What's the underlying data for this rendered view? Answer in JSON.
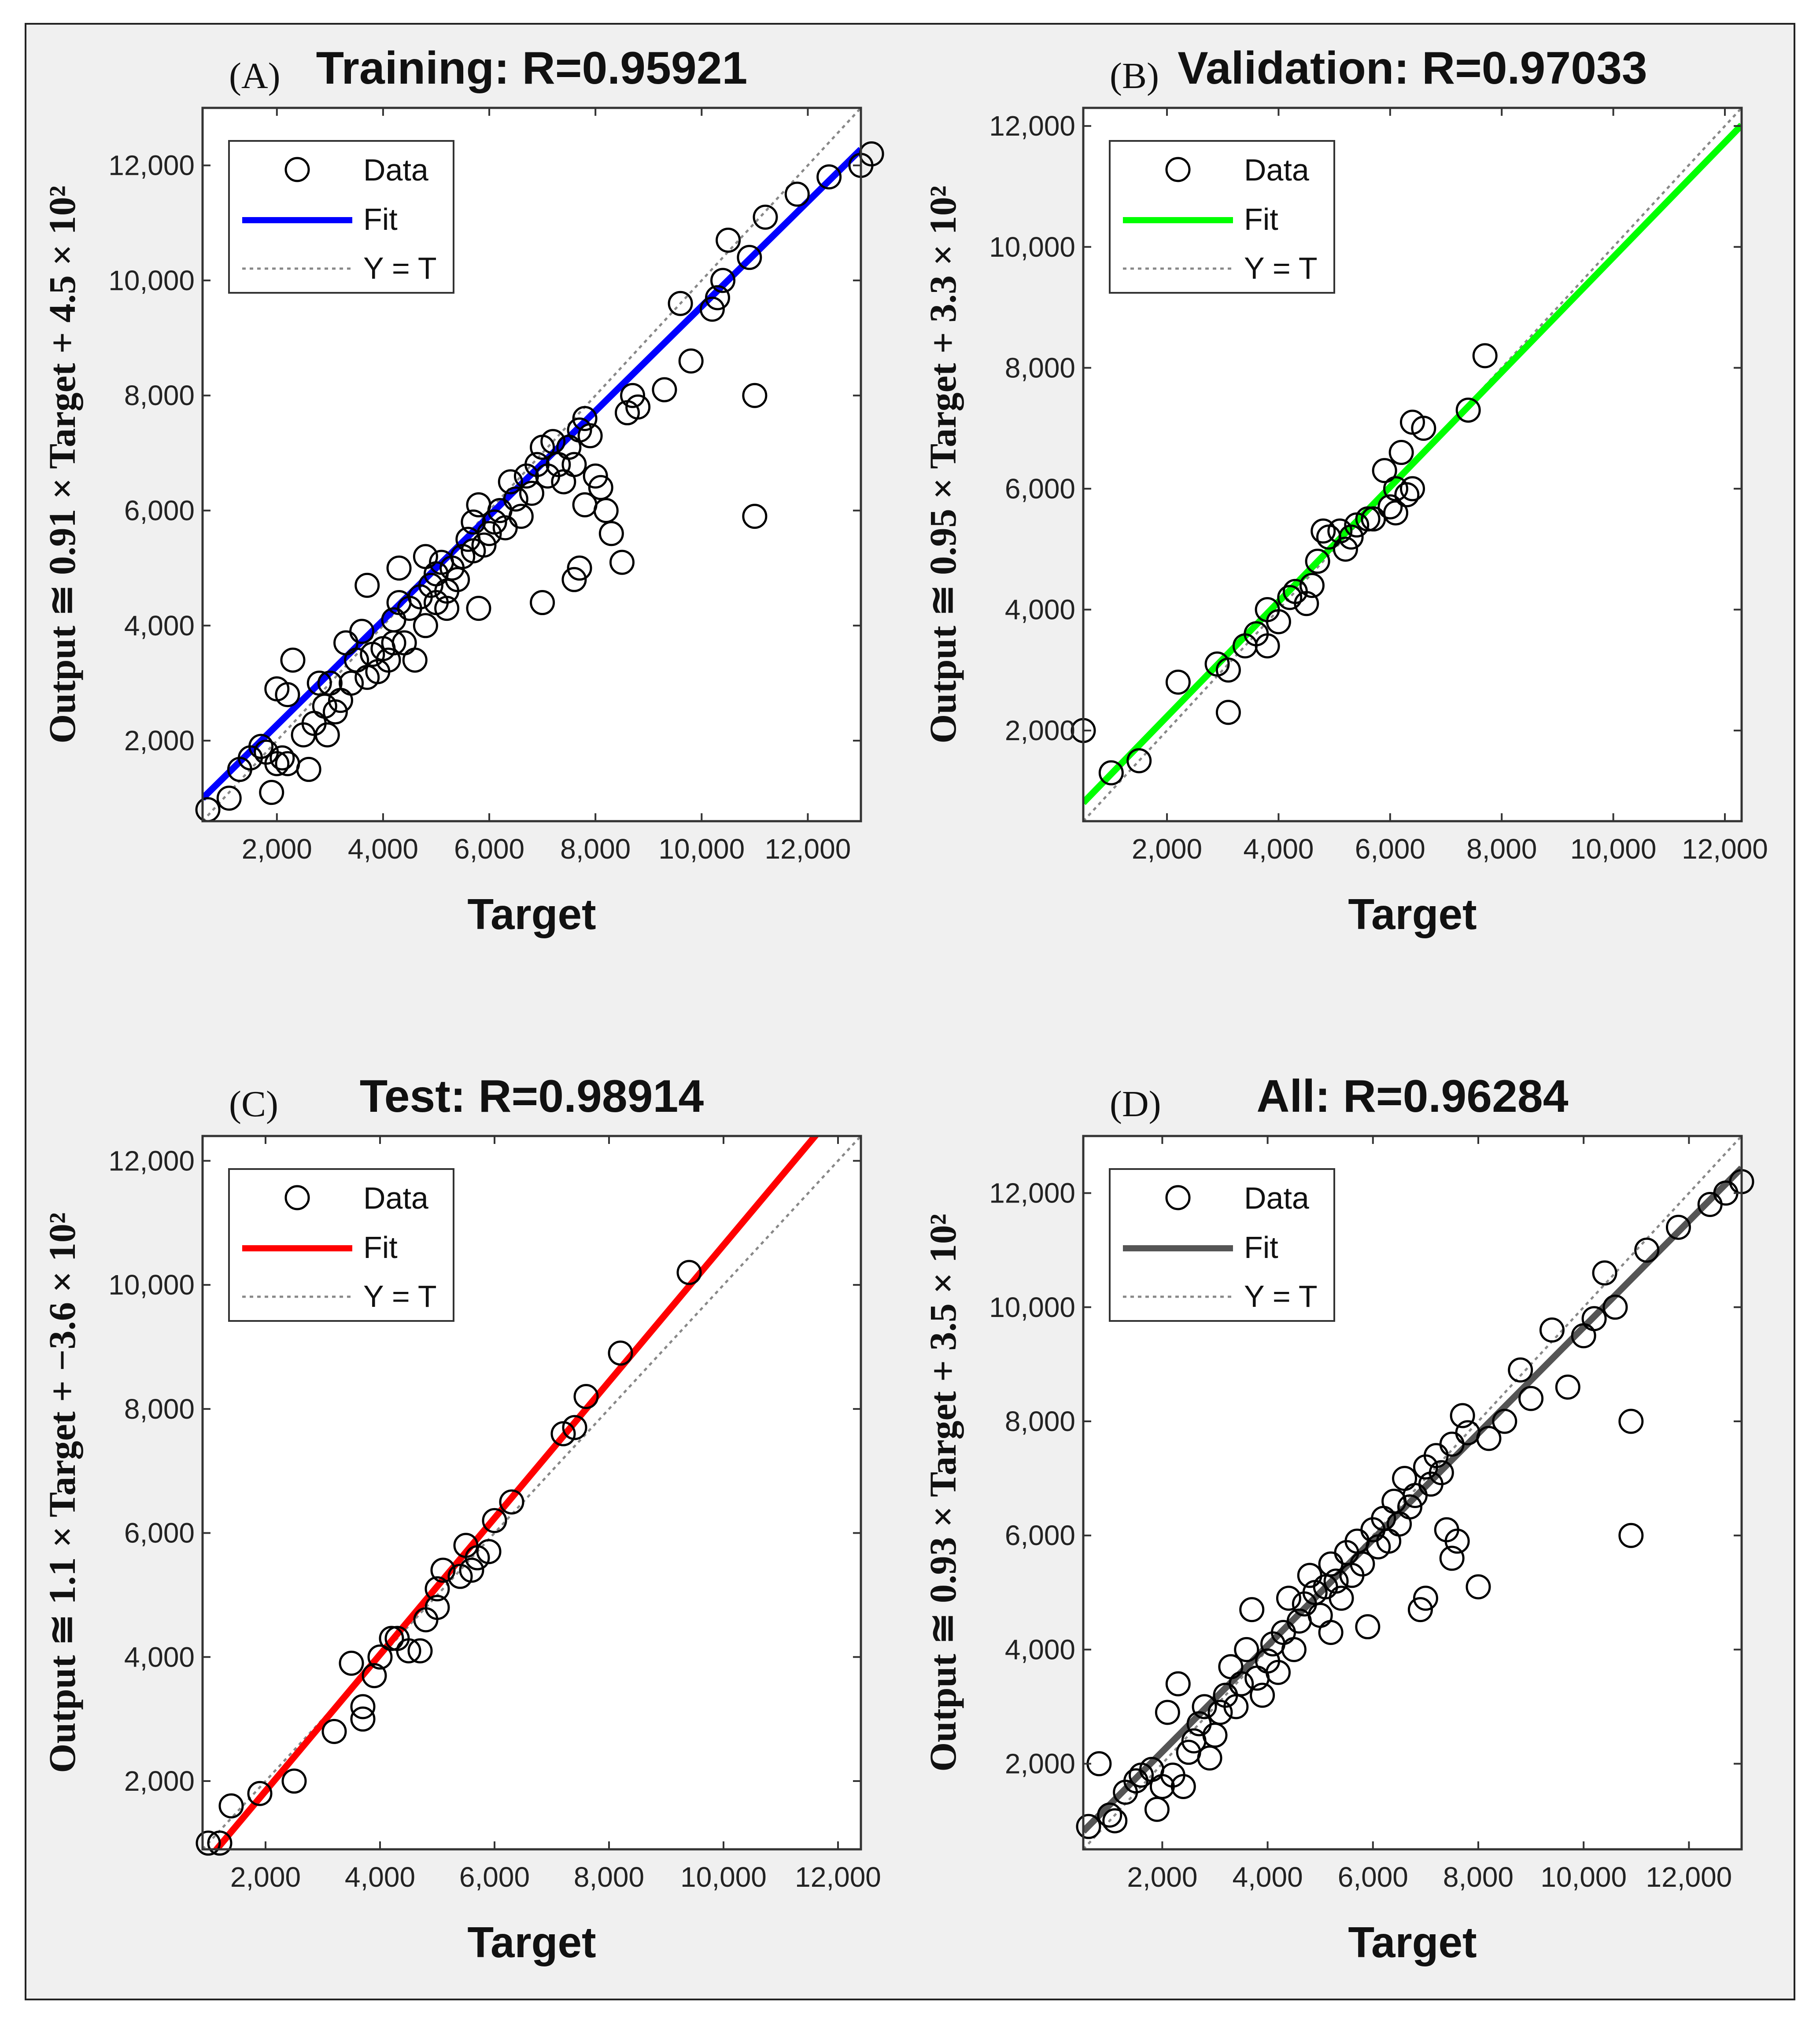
{
  "figure": {
    "colors": {
      "background": "#f0f0f0",
      "axes_background": "#ffffff",
      "marker": "#000000",
      "identity_line": "#888888"
    }
  },
  "chart_data": [
    {
      "type": "scatter",
      "panel": "(A)",
      "title": "Training: R=0.95921",
      "xlabel": "Target",
      "ylabel": "Output ≅ 0.91 × Target + 4.5 × 10²",
      "xlim": [
        600,
        13000
      ],
      "ylim": [
        600,
        13000
      ],
      "xticks": [
        2000,
        4000,
        6000,
        8000,
        10000,
        12000
      ],
      "yticks": [
        2000,
        4000,
        6000,
        8000,
        10000,
        12000
      ],
      "xtick_labels": [
        "2,000",
        "4,000",
        "6,000",
        "8,000",
        "10,000",
        "12,000"
      ],
      "ytick_labels": [
        "2,000",
        "4,000",
        "6,000",
        "8,000",
        "10,000",
        "12,000"
      ],
      "fit": {
        "slope": 0.91,
        "intercept": 450,
        "color": "#0000ff"
      },
      "legend": {
        "position": "top-left",
        "entries": [
          "Data",
          "Fit",
          "Y = T"
        ]
      },
      "points": [
        [
          700,
          800
        ],
        [
          1100,
          1000
        ],
        [
          1300,
          1500
        ],
        [
          1500,
          1700
        ],
        [
          1700,
          1900
        ],
        [
          1800,
          1800
        ],
        [
          1900,
          1100
        ],
        [
          2000,
          1600
        ],
        [
          2000,
          2900
        ],
        [
          2100,
          1700
        ],
        [
          2200,
          2800
        ],
        [
          2200,
          1600
        ],
        [
          2300,
          3400
        ],
        [
          2500,
          2100
        ],
        [
          2600,
          1500
        ],
        [
          2700,
          2300
        ],
        [
          2800,
          3000
        ],
        [
          2900,
          2600
        ],
        [
          2950,
          2100
        ],
        [
          3000,
          3000
        ],
        [
          3100,
          2500
        ],
        [
          3200,
          2700
        ],
        [
          3300,
          3700
        ],
        [
          3400,
          3000
        ],
        [
          3500,
          3400
        ],
        [
          3600,
          3900
        ],
        [
          3700,
          4700
        ],
        [
          3700,
          3100
        ],
        [
          3800,
          3500
        ],
        [
          3900,
          3200
        ],
        [
          4000,
          3600
        ],
        [
          4100,
          3400
        ],
        [
          4200,
          3700
        ],
        [
          4200,
          4100
        ],
        [
          4300,
          4400
        ],
        [
          4300,
          5000
        ],
        [
          4400,
          3700
        ],
        [
          4500,
          4300
        ],
        [
          4600,
          3400
        ],
        [
          4700,
          4500
        ],
        [
          4800,
          4000
        ],
        [
          4800,
          5200
        ],
        [
          4900,
          4700
        ],
        [
          5000,
          4400
        ],
        [
          5000,
          4900
        ],
        [
          5100,
          5100
        ],
        [
          5200,
          4600
        ],
        [
          5200,
          4300
        ],
        [
          5300,
          5000
        ],
        [
          5400,
          4800
        ],
        [
          5500,
          5200
        ],
        [
          5600,
          5500
        ],
        [
          5700,
          5300
        ],
        [
          5700,
          5800
        ],
        [
          5800,
          4300
        ],
        [
          5800,
          6100
        ],
        [
          5900,
          5400
        ],
        [
          6000,
          5600
        ],
        [
          6100,
          5800
        ],
        [
          6200,
          6000
        ],
        [
          6300,
          5700
        ],
        [
          6400,
          6500
        ],
        [
          6500,
          6200
        ],
        [
          6600,
          5900
        ],
        [
          6700,
          6600
        ],
        [
          6800,
          6300
        ],
        [
          6900,
          6800
        ],
        [
          7000,
          4400
        ],
        [
          7000,
          7100
        ],
        [
          7100,
          6600
        ],
        [
          7200,
          7200
        ],
        [
          7300,
          6800
        ],
        [
          7400,
          6500
        ],
        [
          7500,
          7100
        ],
        [
          7600,
          6800
        ],
        [
          7600,
          4800
        ],
        [
          7700,
          5000
        ],
        [
          7700,
          7400
        ],
        [
          7800,
          6100
        ],
        [
          7800,
          7600
        ],
        [
          7900,
          7300
        ],
        [
          8000,
          6600
        ],
        [
          8100,
          6400
        ],
        [
          8200,
          6000
        ],
        [
          8300,
          5600
        ],
        [
          8500,
          5100
        ],
        [
          8600,
          7700
        ],
        [
          8700,
          8000
        ],
        [
          8800,
          7800
        ],
        [
          9300,
          8100
        ],
        [
          9600,
          9600
        ],
        [
          9800,
          8600
        ],
        [
          10200,
          9500
        ],
        [
          10300,
          9700
        ],
        [
          10400,
          10000
        ],
        [
          10500,
          10700
        ],
        [
          10900,
          10400
        ],
        [
          11000,
          8000
        ],
        [
          11000,
          5900
        ],
        [
          11200,
          11100
        ],
        [
          11800,
          11500
        ],
        [
          12400,
          11800
        ],
        [
          13000,
          12000
        ],
        [
          13200,
          12200
        ]
      ]
    },
    {
      "type": "scatter",
      "panel": "(B)",
      "title": "Validation: R=0.97033",
      "xlabel": "Target",
      "ylabel": "Output ≅ 0.95 × Target + 3.3 × 10²",
      "xlim": [
        500,
        12300
      ],
      "ylim": [
        500,
        12300
      ],
      "xticks": [
        2000,
        4000,
        6000,
        8000,
        10000,
        12000
      ],
      "yticks": [
        2000,
        4000,
        6000,
        8000,
        10000,
        12000
      ],
      "xtick_labels": [
        "2,000",
        "4,000",
        "6,000",
        "8,000",
        "10,000",
        "12,000"
      ],
      "ytick_labels": [
        "2,000",
        "4,000",
        "6,000",
        "8,000",
        "10,000",
        "12,000"
      ],
      "fit": {
        "slope": 0.95,
        "intercept": 330,
        "color": "#00ff00"
      },
      "legend": {
        "position": "top-left",
        "entries": [
          "Data",
          "Fit",
          "Y = T"
        ]
      },
      "points": [
        [
          500,
          2000
        ],
        [
          1000,
          1300
        ],
        [
          1500,
          1500
        ],
        [
          2200,
          2800
        ],
        [
          2900,
          3100
        ],
        [
          3100,
          3000
        ],
        [
          3100,
          2300
        ],
        [
          3400,
          3400
        ],
        [
          3600,
          3600
        ],
        [
          3800,
          4000
        ],
        [
          3800,
          3400
        ],
        [
          4000,
          3800
        ],
        [
          4200,
          4200
        ],
        [
          4300,
          4300
        ],
        [
          4500,
          4100
        ],
        [
          4600,
          4400
        ],
        [
          4700,
          4800
        ],
        [
          4800,
          5300
        ],
        [
          4900,
          5200
        ],
        [
          5100,
          5300
        ],
        [
          5200,
          5000
        ],
        [
          5300,
          5200
        ],
        [
          5400,
          5400
        ],
        [
          5600,
          5500
        ],
        [
          5700,
          5500
        ],
        [
          5900,
          6300
        ],
        [
          6000,
          5700
        ],
        [
          6100,
          5600
        ],
        [
          6100,
          6000
        ],
        [
          6200,
          6600
        ],
        [
          6300,
          5900
        ],
        [
          6400,
          6000
        ],
        [
          6400,
          7100
        ],
        [
          6600,
          7000
        ],
        [
          7400,
          7300
        ],
        [
          7700,
          8200
        ]
      ]
    },
    {
      "type": "scatter",
      "panel": "(C)",
      "title": "Test: R=0.98914",
      "xlabel": "Target",
      "ylabel": "Output ≅ 1.1 × Target + −3.6 × 10²",
      "xlim": [
        900,
        12400
      ],
      "ylim": [
        900,
        12400
      ],
      "xticks": [
        2000,
        4000,
        6000,
        8000,
        10000,
        12000
      ],
      "yticks": [
        2000,
        4000,
        6000,
        8000,
        10000,
        12000
      ],
      "xtick_labels": [
        "2,000",
        "4,000",
        "6,000",
        "8,000",
        "10,000",
        "12,000"
      ],
      "ytick_labels": [
        "2,000",
        "4,000",
        "6,000",
        "8,000",
        "10,000",
        "12,000"
      ],
      "fit": {
        "slope": 1.1,
        "intercept": -360,
        "color": "#ff0000"
      },
      "legend": {
        "position": "top-left",
        "entries": [
          "Data",
          "Fit",
          "Y = T"
        ]
      },
      "points": [
        [
          1000,
          1000
        ],
        [
          1200,
          1000
        ],
        [
          1400,
          1600
        ],
        [
          1900,
          1800
        ],
        [
          2500,
          2000
        ],
        [
          3200,
          2800
        ],
        [
          3500,
          3900
        ],
        [
          3700,
          3000
        ],
        [
          3700,
          3200
        ],
        [
          3900,
          3700
        ],
        [
          4000,
          4000
        ],
        [
          4200,
          4300
        ],
        [
          4300,
          4300
        ],
        [
          4500,
          4100
        ],
        [
          4700,
          4100
        ],
        [
          4800,
          4600
        ],
        [
          5000,
          4800
        ],
        [
          5000,
          5100
        ],
        [
          5100,
          5400
        ],
        [
          5400,
          5300
        ],
        [
          5500,
          5800
        ],
        [
          5600,
          5400
        ],
        [
          5700,
          5600
        ],
        [
          5900,
          5700
        ],
        [
          6000,
          6200
        ],
        [
          6300,
          6500
        ],
        [
          7200,
          7600
        ],
        [
          7400,
          7700
        ],
        [
          7600,
          8200
        ],
        [
          8200,
          8900
        ],
        [
          9400,
          10200
        ]
      ]
    },
    {
      "type": "scatter",
      "panel": "(D)",
      "title": "All: R=0.96284",
      "xlabel": "Target",
      "ylabel": "Output ≅ 0.93 × Target + 3.5 × 10²",
      "xlim": [
        500,
        13000
      ],
      "ylim": [
        500,
        13000
      ],
      "xticks": [
        2000,
        4000,
        6000,
        8000,
        10000,
        12000
      ],
      "yticks": [
        2000,
        4000,
        6000,
        8000,
        10000,
        12000
      ],
      "xtick_labels": [
        "2,000",
        "4,000",
        "6,000",
        "8,000",
        "10,000",
        "12,000"
      ],
      "ytick_labels": [
        "2,000",
        "4,000",
        "6,000",
        "8,000",
        "10,000",
        "12,000"
      ],
      "fit": {
        "slope": 0.93,
        "intercept": 350,
        "color": "#555555"
      },
      "legend": {
        "position": "top-left",
        "entries": [
          "Data",
          "Fit",
          "Y = T"
        ]
      },
      "points": [
        [
          600,
          900
        ],
        [
          800,
          2000
        ],
        [
          1000,
          1100
        ],
        [
          1100,
          1000
        ],
        [
          1300,
          1500
        ],
        [
          1500,
          1700
        ],
        [
          1600,
          1800
        ],
        [
          1800,
          1900
        ],
        [
          1900,
          1200
        ],
        [
          2000,
          1600
        ],
        [
          2100,
          2900
        ],
        [
          2200,
          1800
        ],
        [
          2300,
          3400
        ],
        [
          2400,
          1600
        ],
        [
          2500,
          2200
        ],
        [
          2600,
          2400
        ],
        [
          2700,
          2700
        ],
        [
          2800,
          3000
        ],
        [
          2900,
          2100
        ],
        [
          3000,
          2500
        ],
        [
          3100,
          2900
        ],
        [
          3200,
          3200
        ],
        [
          3300,
          3700
        ],
        [
          3400,
          3000
        ],
        [
          3500,
          3400
        ],
        [
          3600,
          4000
        ],
        [
          3700,
          4700
        ],
        [
          3800,
          3500
        ],
        [
          3900,
          3200
        ],
        [
          4000,
          3800
        ],
        [
          4100,
          4100
        ],
        [
          4200,
          3600
        ],
        [
          4300,
          4300
        ],
        [
          4400,
          4900
        ],
        [
          4500,
          4000
        ],
        [
          4600,
          4500
        ],
        [
          4700,
          4800
        ],
        [
          4800,
          5300
        ],
        [
          4900,
          5000
        ],
        [
          5000,
          4600
        ],
        [
          5100,
          5100
        ],
        [
          5200,
          4300
        ],
        [
          5200,
          5500
        ],
        [
          5300,
          5200
        ],
        [
          5400,
          4900
        ],
        [
          5500,
          5700
        ],
        [
          5600,
          5300
        ],
        [
          5700,
          5900
        ],
        [
          5800,
          5500
        ],
        [
          5900,
          4400
        ],
        [
          6000,
          6100
        ],
        [
          6100,
          5800
        ],
        [
          6200,
          6300
        ],
        [
          6300,
          5900
        ],
        [
          6400,
          6600
        ],
        [
          6500,
          6200
        ],
        [
          6600,
          7000
        ],
        [
          6700,
          6500
        ],
        [
          6800,
          6700
        ],
        [
          6900,
          4700
        ],
        [
          7000,
          4900
        ],
        [
          7000,
          7200
        ],
        [
          7100,
          6900
        ],
        [
          7200,
          7400
        ],
        [
          7300,
          7100
        ],
        [
          7400,
          6100
        ],
        [
          7500,
          5600
        ],
        [
          7500,
          7600
        ],
        [
          7600,
          5900
        ],
        [
          7700,
          8100
        ],
        [
          7800,
          7800
        ],
        [
          8000,
          5100
        ],
        [
          8200,
          7700
        ],
        [
          8500,
          8000
        ],
        [
          8800,
          8900
        ],
        [
          9000,
          8400
        ],
        [
          9400,
          9600
        ],
        [
          9700,
          8600
        ],
        [
          10000,
          9500
        ],
        [
          10200,
          9800
        ],
        [
          10400,
          10600
        ],
        [
          10600,
          10000
        ],
        [
          10900,
          8000
        ],
        [
          10900,
          6000
        ],
        [
          11200,
          11000
        ],
        [
          11800,
          11400
        ],
        [
          12400,
          11800
        ],
        [
          12700,
          12000
        ],
        [
          13000,
          12200
        ]
      ]
    }
  ]
}
